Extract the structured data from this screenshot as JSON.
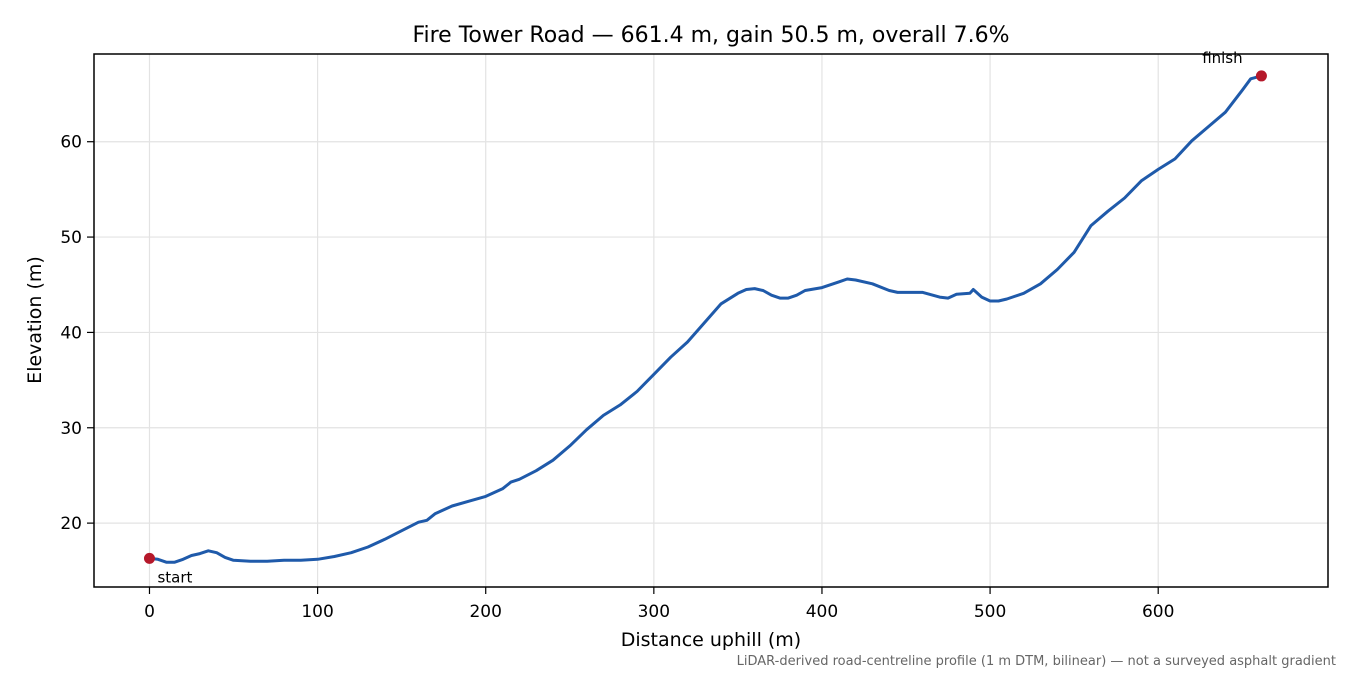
{
  "chart_data": {
    "type": "line",
    "title": "Fire Tower Road — 661.4 m, gain 50.5 m, overall 7.6%",
    "xlabel": "Distance uphill (m)",
    "ylabel": "Elevation (m)",
    "xlim": [
      -33,
      701
    ],
    "ylim": [
      13.3,
      69.2
    ],
    "x_ticks": [
      0,
      100,
      200,
      300,
      400,
      500,
      600
    ],
    "y_ticks": [
      20,
      30,
      40,
      50,
      60
    ],
    "grid": true,
    "line_color": "#1f5aaa",
    "marker_color": "#b5182a",
    "footnote": "LiDAR-derived road-centreline profile (1 m DTM, bilinear) — not a surveyed asphalt gradient",
    "series": [
      {
        "x": [
          0,
          5,
          10,
          15,
          20,
          25,
          30,
          35,
          40,
          45,
          50,
          60,
          70,
          80,
          90,
          100,
          110,
          120,
          130,
          140,
          150,
          160,
          165,
          170,
          180,
          190,
          200,
          210,
          215,
          220,
          230,
          240,
          250,
          260,
          270,
          280,
          290,
          300,
          310,
          320,
          330,
          340,
          350,
          355,
          360,
          365,
          370,
          375,
          380,
          385,
          390,
          400,
          410,
          415,
          420,
          430,
          440,
          445,
          450,
          460,
          470,
          475,
          480,
          488,
          490,
          495,
          500,
          505,
          510,
          520,
          530,
          540,
          550,
          560,
          570,
          580,
          590,
          600,
          610,
          620,
          630,
          640,
          650,
          655,
          661.4
        ],
        "y": [
          16.3,
          16.2,
          15.9,
          15.9,
          16.2,
          16.6,
          16.8,
          17.1,
          16.9,
          16.4,
          16.1,
          16.0,
          16.0,
          16.1,
          16.1,
          16.2,
          16.5,
          16.9,
          17.5,
          18.3,
          19.2,
          20.1,
          20.3,
          21.0,
          21.8,
          22.3,
          22.8,
          23.6,
          24.3,
          24.6,
          25.5,
          26.6,
          28.1,
          29.8,
          31.3,
          32.4,
          33.8,
          35.6,
          37.4,
          39.0,
          41.0,
          43.0,
          44.1,
          44.5,
          44.6,
          44.4,
          43.9,
          43.6,
          43.6,
          43.9,
          44.4,
          44.7,
          45.3,
          45.6,
          45.5,
          45.1,
          44.4,
          44.2,
          44.2,
          44.2,
          43.7,
          43.6,
          44.0,
          44.1,
          44.5,
          43.7,
          43.3,
          43.3,
          43.5,
          44.1,
          45.1,
          46.6,
          48.4,
          51.2,
          52.7,
          54.1,
          55.9,
          57.1,
          58.2,
          60.1,
          61.6,
          63.1,
          65.4,
          66.6,
          66.9
        ]
      }
    ],
    "annotations": [
      {
        "text": "start",
        "x": 0,
        "y": 16.3
      },
      {
        "text": "finish",
        "x": 661.4,
        "y": 66.9
      }
    ]
  }
}
